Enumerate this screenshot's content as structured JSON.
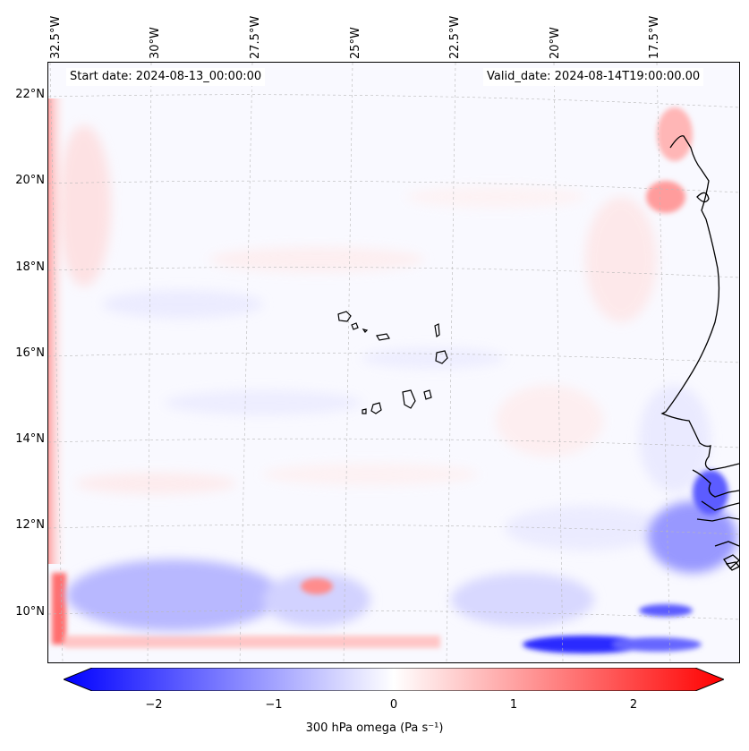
{
  "map": {
    "region": "Eastern tropical Atlantic — Cape Verde and West African coast",
    "start_label": "Start date: 2024-08-13_00:00:00",
    "valid_label": "Valid_date: 2024-08-14T19:00:00.00",
    "lon_labels": [
      "32.5°W",
      "30°W",
      "27.5°W",
      "25°W",
      "22.5°W",
      "20°W",
      "17.5°W"
    ],
    "lat_labels": [
      "22°N",
      "20°N",
      "18°N",
      "16°N",
      "14°N",
      "12°N",
      "10°N"
    ],
    "colorbar": {
      "label": "300 hPa omega (Pa s⁻¹)",
      "ticks": [
        "−2",
        "−1",
        "0",
        "1",
        "2"
      ],
      "range": [
        -2.5,
        2.5
      ],
      "colors": {
        "min": "#0000ff",
        "mid": "#ffffff",
        "max": "#ff0000"
      }
    }
  }
}
